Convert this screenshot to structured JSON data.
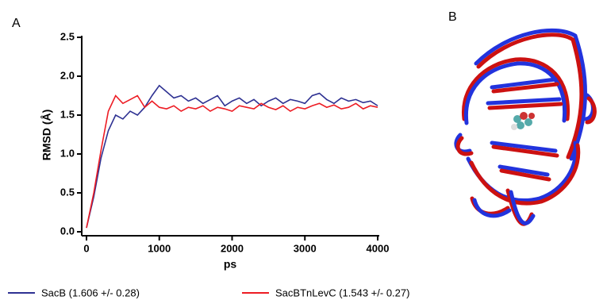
{
  "chart_data": {
    "type": "line",
    "panel_labels": [
      "A",
      "B"
    ],
    "xlabel": "ps",
    "ylabel": "RMSD (Å)",
    "x": [
      0,
      100,
      200,
      300,
      400,
      500,
      600,
      700,
      800,
      900,
      1000,
      1100,
      1200,
      1300,
      1400,
      1500,
      1600,
      1700,
      1800,
      1900,
      2000,
      2100,
      2200,
      2300,
      2400,
      2500,
      2600,
      2700,
      2800,
      2900,
      3000,
      3100,
      3200,
      3300,
      3400,
      3500,
      3600,
      3700,
      3800,
      3900,
      4000
    ],
    "series": [
      {
        "name": "SacB (1.606 +/- 0.28)",
        "color": "#2e3192",
        "values": [
          0.05,
          0.45,
          0.95,
          1.3,
          1.5,
          1.45,
          1.55,
          1.5,
          1.6,
          1.75,
          1.88,
          1.8,
          1.72,
          1.75,
          1.68,
          1.72,
          1.65,
          1.7,
          1.75,
          1.62,
          1.68,
          1.72,
          1.65,
          1.7,
          1.62,
          1.68,
          1.72,
          1.65,
          1.7,
          1.68,
          1.65,
          1.75,
          1.78,
          1.7,
          1.65,
          1.72,
          1.68,
          1.7,
          1.66,
          1.68,
          1.62
        ]
      },
      {
        "name": "SacBTnLevC (1.543 +/- 0.27)",
        "color": "#ed1c24",
        "values": [
          0.05,
          0.5,
          1.05,
          1.55,
          1.75,
          1.65,
          1.7,
          1.75,
          1.6,
          1.68,
          1.6,
          1.58,
          1.62,
          1.55,
          1.6,
          1.58,
          1.62,
          1.55,
          1.6,
          1.58,
          1.55,
          1.62,
          1.6,
          1.58,
          1.65,
          1.6,
          1.57,
          1.62,
          1.55,
          1.6,
          1.58,
          1.62,
          1.65,
          1.6,
          1.63,
          1.58,
          1.6,
          1.65,
          1.58,
          1.62,
          1.6
        ]
      }
    ],
    "xlim": [
      0,
      4000
    ],
    "ylim": [
      0,
      2.5
    ],
    "xticks": [
      0,
      1000,
      2000,
      3000,
      4000
    ],
    "yticks": [
      {
        "value": 0,
        "label": "0.0"
      },
      0.5,
      {
        "value": 1,
        "label": "1.0"
      },
      1.5,
      {
        "value": 2,
        "label": "2.0"
      },
      2.5
    ]
  }
}
